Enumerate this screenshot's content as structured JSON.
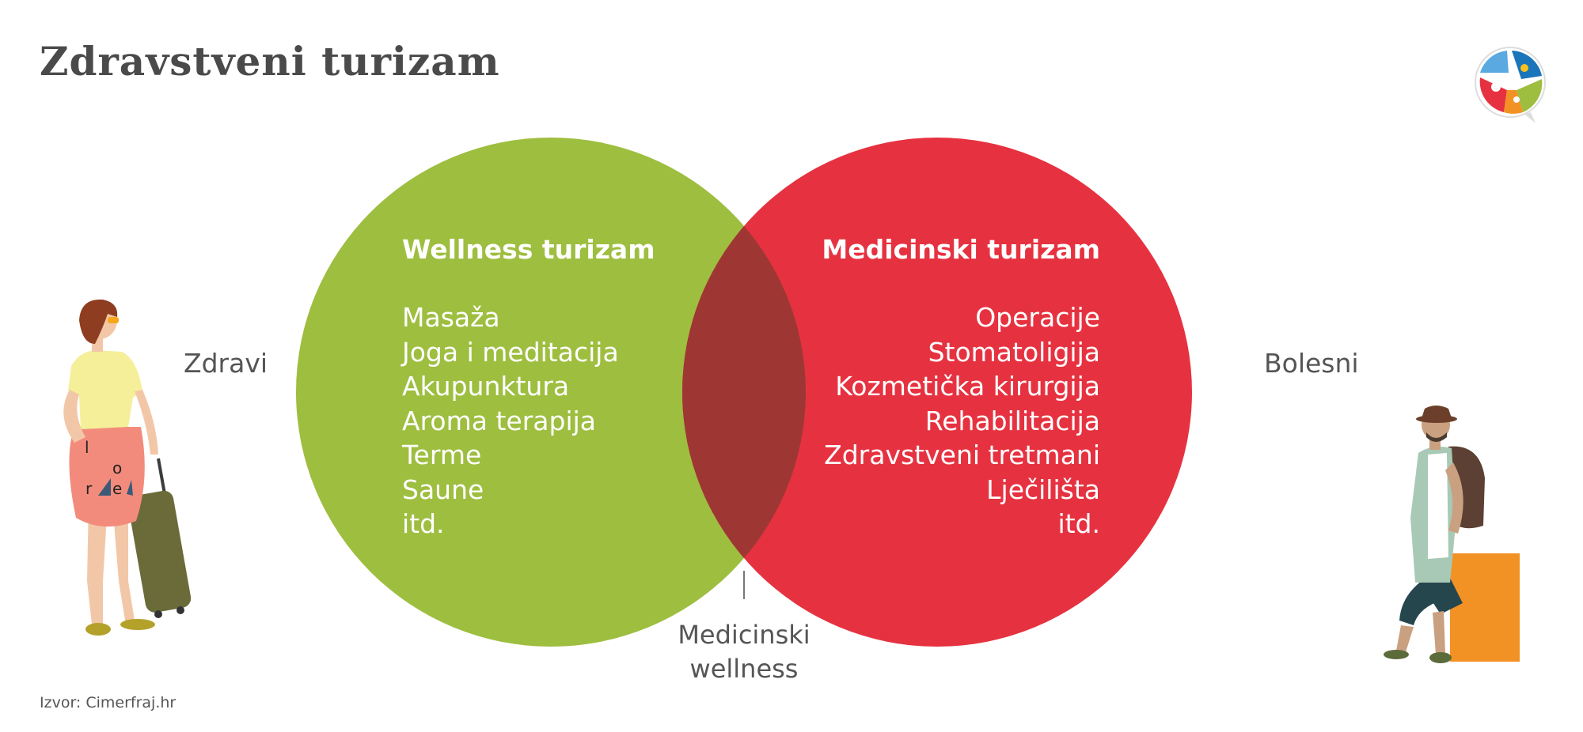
{
  "title": "Zdravstveni turizam",
  "labels": {
    "healthy": "Zdravi",
    "sick": "Bolesni",
    "overlap_line1": "Medicinski",
    "overlap_line2": "wellness"
  },
  "wellness": {
    "title": "Wellness turizam",
    "items": [
      "Masaža",
      "Joga i meditacija",
      "Akupunktura",
      "Aroma terapija",
      "Terme",
      "Saune",
      "itd."
    ]
  },
  "medical": {
    "title": "Medicinski turizam",
    "items": [
      "Operacije",
      "Stomatoligija",
      "Kozmetička kirurgija",
      "Rehabilitacija",
      "Zdravstveni tretmani",
      "Lječilišta",
      "itd."
    ]
  },
  "source": "Izvor: Cimerfraj.hr",
  "colors": {
    "green": "#9ebe40",
    "red": "#e63240",
    "overlap": "#9e3734",
    "text_dark": "#4a4a4a",
    "orange_box": "#f39224"
  }
}
